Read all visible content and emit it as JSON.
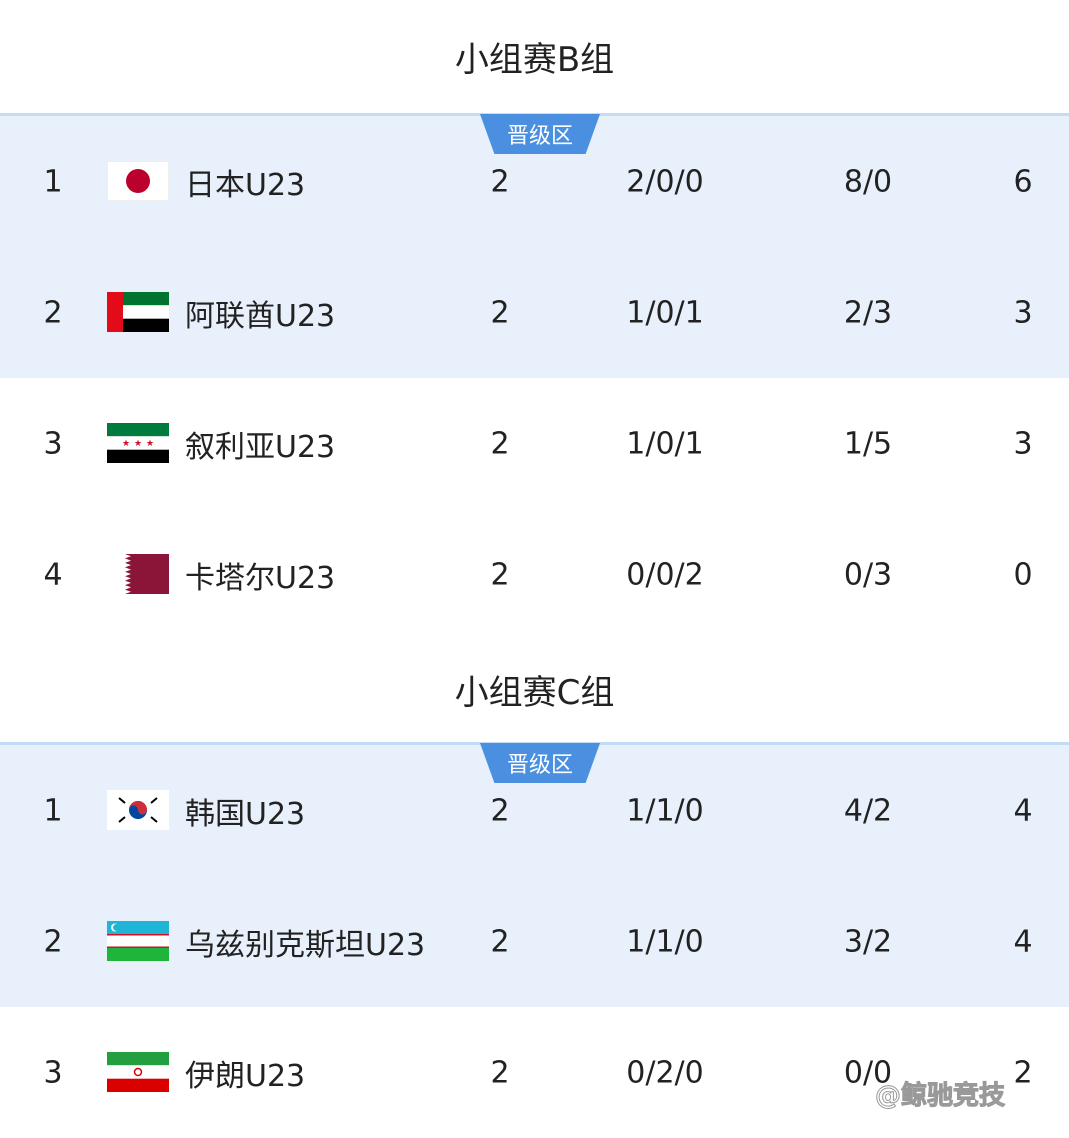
{
  "groups": [
    {
      "title": "小组赛B组",
      "badge": "晋级区",
      "rows": [
        {
          "rank": "1",
          "flag": "japan-flag-icon",
          "team": "日本U23",
          "played": "2",
          "wdl": "2/0/0",
          "goals": "8/0",
          "points": "6",
          "qualified": true
        },
        {
          "rank": "2",
          "flag": "uae-flag-icon",
          "team": "阿联酋U23",
          "played": "2",
          "wdl": "1/0/1",
          "goals": "2/3",
          "points": "3",
          "qualified": true
        },
        {
          "rank": "3",
          "flag": "syria-flag-icon",
          "team": "叙利亚U23",
          "played": "2",
          "wdl": "1/0/1",
          "goals": "1/5",
          "points": "3",
          "qualified": false
        },
        {
          "rank": "4",
          "flag": "qatar-flag-icon",
          "team": "卡塔尔U23",
          "played": "2",
          "wdl": "0/0/2",
          "goals": "0/3",
          "points": "0",
          "qualified": false
        }
      ]
    },
    {
      "title": "小组赛C组",
      "badge": "晋级区",
      "rows": [
        {
          "rank": "1",
          "flag": "korea-flag-icon",
          "team": "韩国U23",
          "played": "2",
          "wdl": "1/1/0",
          "goals": "4/2",
          "points": "4",
          "qualified": true
        },
        {
          "rank": "2",
          "flag": "uzbekistan-flag-icon",
          "team": "乌兹别克斯坦U23",
          "played": "2",
          "wdl": "1/1/0",
          "goals": "3/2",
          "points": "4",
          "qualified": true
        },
        {
          "rank": "3",
          "flag": "iran-flag-icon",
          "team": "伊朗U23",
          "played": "2",
          "wdl": "0/2/0",
          "goals": "0/0",
          "points": "2",
          "qualified": false
        }
      ]
    }
  ],
  "watermark": "@鲸驰竞技",
  "colors": {
    "highlight": "#e7f0fb",
    "badge": "#4a8fe0"
  }
}
